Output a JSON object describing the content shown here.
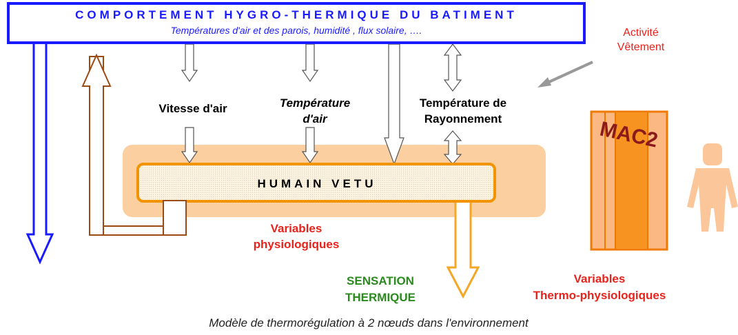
{
  "header": {
    "title": "COMPORTEMENT HYGRO-THERMIQUE DU BATIMENT",
    "subtitle": "Températures d'air et des parois, humidité , flux solaire, …."
  },
  "side_note": [
    "Activité",
    "Vêtement"
  ],
  "inputs": {
    "air_speed": [
      "Vitesse d'air"
    ],
    "air_temperature": [
      "Température",
      "d'air"
    ],
    "radiant_temperature": [
      "Température de",
      "Rayonnement"
    ]
  },
  "center": "HUMAIN VETU",
  "mac_label": "MAC2",
  "physiological": [
    "Variables",
    "physiologiques"
  ],
  "sensation": [
    "SENSATION",
    "THERMIQUE"
  ],
  "thermo_physiological": [
    "Variables",
    "Thermo-physiologiques"
  ],
  "caption": "Modèle de thermorégulation à 2 nœuds dans l'environnement"
}
